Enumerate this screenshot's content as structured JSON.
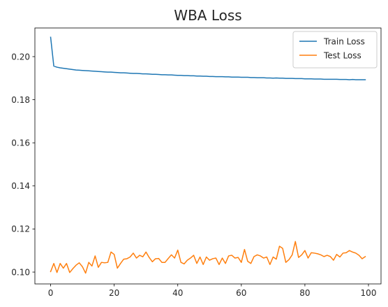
{
  "chart_data": {
    "type": "line",
    "title": "WBA Loss",
    "xlabel": "",
    "ylabel": "",
    "xlim": [
      -4.95,
      103.95
    ],
    "ylim": [
      0.0945,
      0.2133
    ],
    "x_ticks": [
      0,
      20,
      40,
      60,
      80,
      100
    ],
    "x_tick_labels": [
      "0",
      "20",
      "40",
      "60",
      "80",
      "100"
    ],
    "y_ticks": [
      0.1,
      0.12,
      0.14,
      0.16,
      0.18,
      0.2
    ],
    "y_tick_labels": [
      "0.10",
      "0.12",
      "0.14",
      "0.16",
      "0.18",
      "0.20"
    ],
    "grid": false,
    "legend_position": "top-right",
    "x": [
      0,
      1,
      2,
      3,
      4,
      5,
      6,
      7,
      8,
      9,
      10,
      11,
      12,
      13,
      14,
      15,
      16,
      17,
      18,
      19,
      20,
      21,
      22,
      23,
      24,
      25,
      26,
      27,
      28,
      29,
      30,
      31,
      32,
      33,
      34,
      35,
      36,
      37,
      38,
      39,
      40,
      41,
      42,
      43,
      44,
      45,
      46,
      47,
      48,
      49,
      50,
      51,
      52,
      53,
      54,
      55,
      56,
      57,
      58,
      59,
      60,
      61,
      62,
      63,
      64,
      65,
      66,
      67,
      68,
      69,
      70,
      71,
      72,
      73,
      74,
      75,
      76,
      77,
      78,
      79,
      80,
      81,
      82,
      83,
      84,
      85,
      86,
      87,
      88,
      89,
      90,
      91,
      92,
      93,
      94,
      95,
      96,
      97,
      98,
      99
    ],
    "series": [
      {
        "name": "Train Loss",
        "color": "#1f77b4",
        "values": [
          0.209,
          0.1956,
          0.1951,
          0.1948,
          0.1946,
          0.1944,
          0.1942,
          0.194,
          0.1938,
          0.1937,
          0.1936,
          0.1935,
          0.1934,
          0.1933,
          0.1932,
          0.1931,
          0.193,
          0.1929,
          0.1928,
          0.1928,
          0.1927,
          0.1926,
          0.1925,
          0.1925,
          0.1924,
          0.1923,
          0.1922,
          0.1922,
          0.1921,
          0.192,
          0.192,
          0.1919,
          0.1918,
          0.1918,
          0.1917,
          0.1916,
          0.1916,
          0.1915,
          0.1915,
          0.1914,
          0.1913,
          0.1913,
          0.1912,
          0.1912,
          0.1911,
          0.1911,
          0.191,
          0.191,
          0.1909,
          0.1909,
          0.1908,
          0.1908,
          0.1907,
          0.1907,
          0.1907,
          0.1906,
          0.1906,
          0.1905,
          0.1905,
          0.1905,
          0.1904,
          0.1904,
          0.1904,
          0.1903,
          0.1903,
          0.1902,
          0.1902,
          0.1902,
          0.1901,
          0.1901,
          0.19,
          0.1901,
          0.19,
          0.19,
          0.1899,
          0.1899,
          0.1899,
          0.1898,
          0.1898,
          0.1898,
          0.1897,
          0.1897,
          0.1897,
          0.1896,
          0.1896,
          0.1896,
          0.1895,
          0.1895,
          0.1895,
          0.1895,
          0.1895,
          0.1894,
          0.1894,
          0.1894,
          0.1893,
          0.1894,
          0.1893,
          0.1893,
          0.1893,
          0.1893
        ]
      },
      {
        "name": "Test Loss",
        "color": "#ff7f0e",
        "values": [
          0.1002,
          0.104,
          0.0998,
          0.104,
          0.1018,
          0.104,
          0.0998,
          0.1016,
          0.1032,
          0.1043,
          0.1025,
          0.0995,
          0.1045,
          0.1028,
          0.1075,
          0.1022,
          0.1045,
          0.1043,
          0.1045,
          0.1093,
          0.1082,
          0.1018,
          0.104,
          0.106,
          0.1062,
          0.107,
          0.1088,
          0.1065,
          0.1078,
          0.1071,
          0.1093,
          0.1068,
          0.1048,
          0.1062,
          0.1063,
          0.1045,
          0.1045,
          0.1063,
          0.108,
          0.1065,
          0.1102,
          0.1045,
          0.1038,
          0.1055,
          0.1065,
          0.1078,
          0.104,
          0.107,
          0.1035,
          0.107,
          0.1055,
          0.1062,
          0.1065,
          0.1035,
          0.1065,
          0.104,
          0.1075,
          0.1078,
          0.1065,
          0.1068,
          0.1045,
          0.1105,
          0.105,
          0.104,
          0.1072,
          0.108,
          0.1075,
          0.1065,
          0.107,
          0.1035,
          0.107,
          0.106,
          0.112,
          0.111,
          0.1045,
          0.1058,
          0.108,
          0.1142,
          0.1068,
          0.108,
          0.11,
          0.1065,
          0.109,
          0.1088,
          0.1085,
          0.108,
          0.1072,
          0.1078,
          0.1072,
          0.1055,
          0.1082,
          0.107,
          0.1088,
          0.109,
          0.11,
          0.1093,
          0.1088,
          0.1078,
          0.1062,
          0.1072
        ]
      }
    ]
  }
}
